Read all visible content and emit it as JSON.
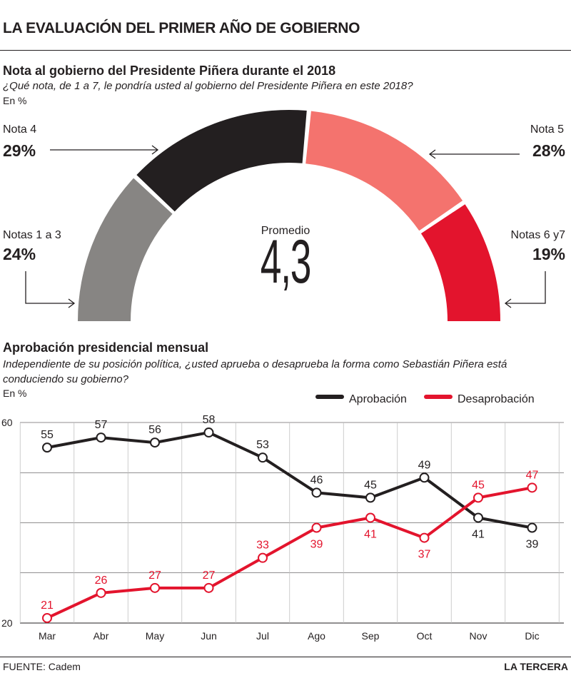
{
  "header": {
    "title": "LA EVALUACIÓN DEL PRIMER AÑO DE GOBIERNO"
  },
  "section1": {
    "title": "Nota al gobierno del Presidente Piñera durante el 2018",
    "question": "¿Qué nota, de 1 a 7, le pondría usted al gobierno del Presidente Piñera en este 2018?",
    "unit": "En %",
    "average_label": "Promedio",
    "average_value": "4,3"
  },
  "section2": {
    "title": "Aprobación presidencial mensual",
    "question": "Independiente de su posición política, ¿usted aprueba o desaprueba la forma como Sebastián Piñera está conduciendo su gobierno?",
    "unit": "En %"
  },
  "footer": {
    "source": "FUENTE: Cadem",
    "brand": "LA TERCERA"
  },
  "colors": {
    "dark": "#231f20",
    "gray": "#878583",
    "salmon": "#f4736e",
    "red": "#e3142d"
  },
  "chart_data": [
    {
      "type": "pie",
      "variant": "semicircle-gauge",
      "unit": "%",
      "slices": [
        {
          "label": "Notas 1 a 3",
          "value": 24,
          "value_label": "24%",
          "color": "#878583"
        },
        {
          "label": "Nota 4",
          "value": 29,
          "value_label": "29%",
          "color": "#231f20"
        },
        {
          "label": "Nota 5",
          "value": 28,
          "value_label": "28%",
          "color": "#f4736e"
        },
        {
          "label": "Notas 6 y7",
          "value": 19,
          "value_label": "19%",
          "color": "#e3142d"
        }
      ]
    },
    {
      "type": "line",
      "categories": [
        "Mar",
        "Abr",
        "May",
        "Jun",
        "Jul",
        "Ago",
        "Sep",
        "Oct",
        "Nov",
        "Dic"
      ],
      "series": [
        {
          "name": "Aprobación",
          "color": "#231f20",
          "values": [
            55,
            57,
            56,
            58,
            53,
            46,
            45,
            49,
            41,
            39
          ]
        },
        {
          "name": "Desaprobación",
          "color": "#e3142d",
          "values": [
            21,
            26,
            27,
            27,
            33,
            39,
            41,
            37,
            45,
            47
          ]
        }
      ],
      "ylim": [
        20,
        60
      ],
      "yticks": [
        "20",
        "60"
      ],
      "grid": true,
      "legend_position": "top-right"
    }
  ]
}
